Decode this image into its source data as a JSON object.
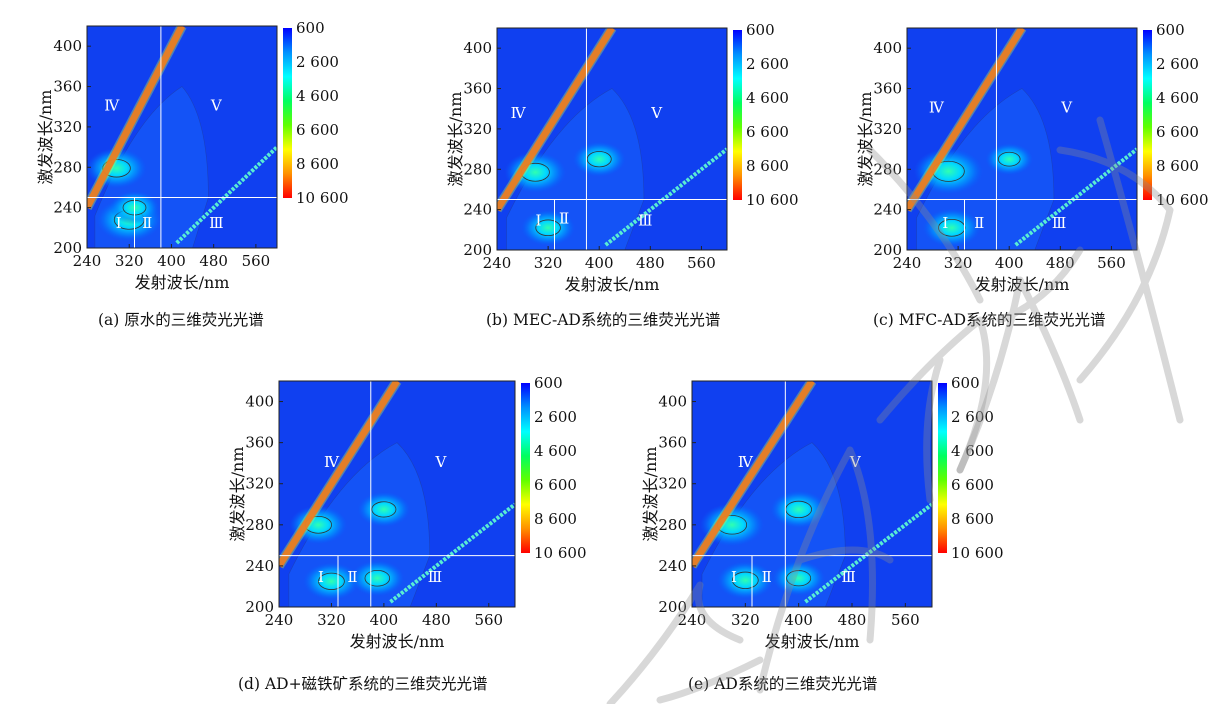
{
  "chart_data": [
    {
      "type": "heatmap",
      "panel_id": "a",
      "caption": "(a) 原水的三维荧光光谱",
      "xlabel": "发射波长/nm",
      "ylabel": "激发波长/nm",
      "xlim": [
        240,
        600
      ],
      "ylim": [
        200,
        420
      ],
      "xticks": [
        240,
        320,
        400,
        480,
        560
      ],
      "yticks": [
        200,
        240,
        280,
        320,
        360,
        400
      ],
      "colorbar": {
        "range": [
          600,
          10600
        ],
        "ticks": [
          "600",
          "2 600",
          "4 600",
          "6 600",
          "8 600",
          "10 600"
        ]
      },
      "divider_lines": {
        "x": 380,
        "y": 250
      },
      "region_labels": [
        {
          "label": "Ⅰ",
          "em": 300,
          "ex": 224
        },
        {
          "label": "Ⅱ",
          "em": 354,
          "ex": 224
        },
        {
          "label": "Ⅲ",
          "em": 485,
          "ex": 224
        },
        {
          "label": "Ⅳ",
          "em": 287,
          "ex": 340
        },
        {
          "label": "Ⅴ",
          "em": 485,
          "ex": 340
        }
      ],
      "peaks": [
        {
          "em": 296,
          "ex": 279,
          "intensity": 4200
        },
        {
          "em": 320,
          "ex": 228,
          "intensity": 5000
        },
        {
          "em": 330,
          "ex": 240,
          "intensity": 2600
        }
      ]
    },
    {
      "type": "heatmap",
      "panel_id": "b",
      "caption": "(b) MEC-AD系统的三维荧光光谱",
      "xlabel": "发射波长/nm",
      "ylabel": "激发波长/nm",
      "xlim": [
        240,
        600
      ],
      "ylim": [
        200,
        420
      ],
      "xticks": [
        240,
        320,
        400,
        480,
        560
      ],
      "yticks": [
        200,
        240,
        280,
        320,
        360,
        400
      ],
      "colorbar": {
        "range": [
          600,
          10600
        ],
        "ticks": [
          "600",
          "2 600",
          "4 600",
          "6 600",
          "8 600",
          "10 600"
        ]
      },
      "divider_lines": {
        "x": 380,
        "y": 250
      },
      "region_labels": [
        {
          "label": "Ⅰ",
          "em": 305,
          "ex": 228
        },
        {
          "label": "Ⅱ",
          "em": 345,
          "ex": 230
        },
        {
          "label": "Ⅲ",
          "em": 472,
          "ex": 228
        },
        {
          "label": "Ⅳ",
          "em": 273,
          "ex": 335
        },
        {
          "label": "Ⅴ",
          "em": 490,
          "ex": 335
        }
      ],
      "peaks": [
        {
          "em": 300,
          "ex": 277,
          "intensity": 4400
        },
        {
          "em": 400,
          "ex": 290,
          "intensity": 3000
        },
        {
          "em": 320,
          "ex": 222,
          "intensity": 3200
        }
      ]
    },
    {
      "type": "heatmap",
      "panel_id": "c",
      "caption": "(c) MFC-AD系统的三维荧光光谱",
      "xlabel": "发射波长/nm",
      "ylabel": "激发波长/nm",
      "xlim": [
        240,
        600
      ],
      "ylim": [
        200,
        420
      ],
      "xticks": [
        240,
        320,
        400,
        480,
        560
      ],
      "yticks": [
        200,
        240,
        280,
        320,
        360,
        400
      ],
      "colorbar": {
        "range": [
          600,
          10600
        ],
        "ticks": [
          "600",
          "2 600",
          "4 600",
          "6 600",
          "8 600",
          "10 600"
        ]
      },
      "divider_lines": {
        "x": 380,
        "y": 250
      },
      "region_labels": [
        {
          "label": "Ⅰ",
          "em": 300,
          "ex": 226
        },
        {
          "label": "Ⅱ",
          "em": 353,
          "ex": 226
        },
        {
          "label": "Ⅲ",
          "em": 478,
          "ex": 226
        },
        {
          "label": "Ⅳ",
          "em": 286,
          "ex": 340
        },
        {
          "label": "Ⅴ",
          "em": 490,
          "ex": 340
        }
      ],
      "peaks": [
        {
          "em": 305,
          "ex": 278,
          "intensity": 5600
        },
        {
          "em": 310,
          "ex": 222,
          "intensity": 3800
        },
        {
          "em": 400,
          "ex": 290,
          "intensity": 2200
        }
      ]
    },
    {
      "type": "heatmap",
      "panel_id": "d",
      "caption": "(d) AD+磁铁矿系统的三维荧光光谱",
      "xlabel": "发射波长/nm",
      "ylabel": "激发波长/nm",
      "xlim": [
        240,
        600
      ],
      "ylim": [
        200,
        420
      ],
      "xticks": [
        240,
        320,
        400,
        480,
        560
      ],
      "yticks": [
        200,
        240,
        280,
        320,
        360,
        400
      ],
      "colorbar": {
        "range": [
          600,
          10600
        ],
        "ticks": [
          "600",
          "2 600",
          "4 600",
          "6 600",
          "8 600",
          "10 600"
        ]
      },
      "divider_lines": {
        "x": 380,
        "y": 250
      },
      "region_labels": [
        {
          "label": "Ⅰ",
          "em": 304,
          "ex": 228
        },
        {
          "label": "Ⅱ",
          "em": 352,
          "ex": 228
        },
        {
          "label": "Ⅲ",
          "em": 478,
          "ex": 228
        },
        {
          "label": "Ⅳ",
          "em": 320,
          "ex": 340
        },
        {
          "label": "Ⅴ",
          "em": 487,
          "ex": 340
        }
      ],
      "peaks": [
        {
          "em": 300,
          "ex": 280,
          "intensity": 3800
        },
        {
          "em": 400,
          "ex": 295,
          "intensity": 3000
        },
        {
          "em": 320,
          "ex": 225,
          "intensity": 3600
        },
        {
          "em": 390,
          "ex": 228,
          "intensity": 3200
        }
      ]
    },
    {
      "type": "heatmap",
      "panel_id": "e",
      "caption": "(e) AD系统的三维荧光光谱",
      "xlabel": "发射波长/nm",
      "ylabel": "激发波长/nm",
      "xlim": [
        240,
        600
      ],
      "ylim": [
        200,
        420
      ],
      "xticks": [
        240,
        320,
        400,
        480,
        560
      ],
      "yticks": [
        200,
        240,
        280,
        320,
        360,
        400
      ],
      "colorbar": {
        "range": [
          600,
          10600
        ],
        "ticks": [
          "600",
          "2 600",
          "4 600",
          "6 600",
          "8 600",
          "10 600"
        ]
      },
      "divider_lines": {
        "x": 380,
        "y": 250
      },
      "region_labels": [
        {
          "label": "Ⅰ",
          "em": 303,
          "ex": 228
        },
        {
          "label": "Ⅱ",
          "em": 352,
          "ex": 228
        },
        {
          "label": "Ⅲ",
          "em": 475,
          "ex": 228
        },
        {
          "label": "Ⅳ",
          "em": 320,
          "ex": 340
        },
        {
          "label": "Ⅴ",
          "em": 485,
          "ex": 340
        }
      ],
      "peaks": [
        {
          "em": 300,
          "ex": 280,
          "intensity": 4800
        },
        {
          "em": 400,
          "ex": 295,
          "intensity": 3600
        },
        {
          "em": 320,
          "ex": 226,
          "intensity": 3600
        },
        {
          "em": 400,
          "ex": 228,
          "intensity": 3000
        }
      ]
    }
  ],
  "colors": {
    "background": "#1040f0",
    "colorbar_stops": [
      "#0000ff",
      "#0090ff",
      "#00ffff",
      "#00ff60",
      "#60ff00",
      "#ffff00",
      "#ff9000",
      "#ff0000"
    ],
    "gridline": "#ffffff",
    "contour": "#333333"
  }
}
